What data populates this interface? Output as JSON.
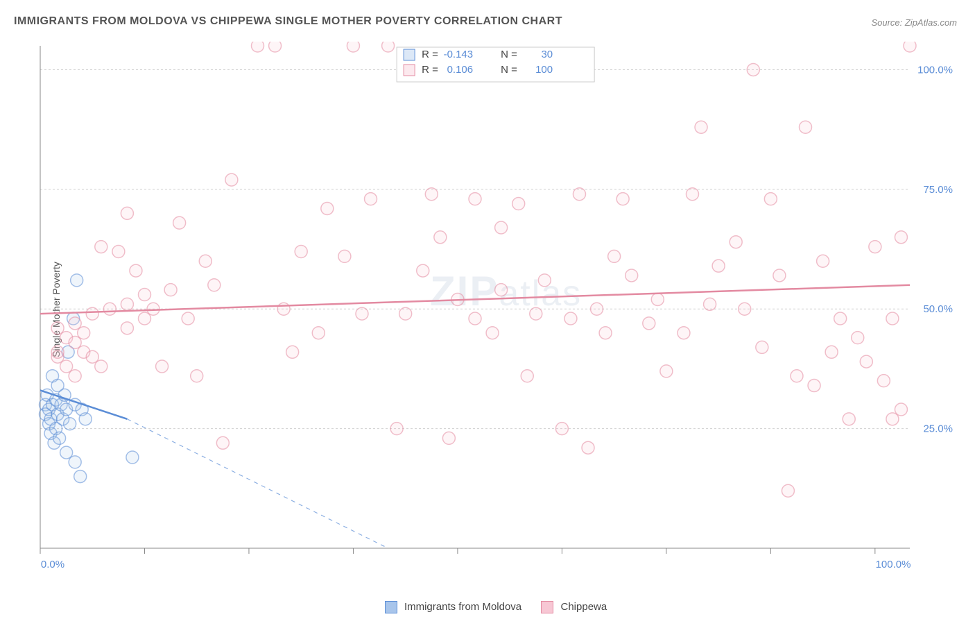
{
  "title": "IMMIGRANTS FROM MOLDOVA VS CHIPPEWA SINGLE MOTHER POVERTY CORRELATION CHART",
  "source": "Source: ZipAtlas.com",
  "y_axis_label": "Single Mother Poverty",
  "watermark": {
    "big": "ZIP",
    "small": "atlas"
  },
  "chart": {
    "type": "scatter",
    "xlim": [
      0,
      100
    ],
    "ylim": [
      0,
      105
    ],
    "xticks": [
      0,
      12,
      24,
      36,
      48,
      60,
      72,
      84,
      96
    ],
    "xtick_label_0": "0.0%",
    "xtick_label_end": "100.0%",
    "yticks": [
      25,
      50,
      75,
      100
    ],
    "ytick_labels": [
      "25.0%",
      "50.0%",
      "75.0%",
      "100.0%"
    ],
    "background": "#ffffff",
    "grid_color": "#d0d0d0",
    "point_radius": 9,
    "point_stroke_width": 1.5,
    "point_fill_opacity": 0.18,
    "trend_line_width": 2.5,
    "series": [
      {
        "name": "Immigrants from Moldova",
        "color_stroke": "#5b8dd6",
        "color_fill": "#a8c5eb",
        "R": "-0.143",
        "N": "30",
        "trend": {
          "x1": 0,
          "y1": 33,
          "x2": 10,
          "y2": 27,
          "dash_to_x": 40,
          "dash_to_y": 0
        },
        "points": [
          [
            0.6,
            30
          ],
          [
            0.6,
            28
          ],
          [
            0.8,
            32
          ],
          [
            1.0,
            26
          ],
          [
            1.0,
            29
          ],
          [
            1.2,
            24
          ],
          [
            1.2,
            27
          ],
          [
            1.4,
            36
          ],
          [
            1.4,
            30
          ],
          [
            1.6,
            22
          ],
          [
            1.8,
            31
          ],
          [
            1.8,
            25
          ],
          [
            2.0,
            28
          ],
          [
            2.0,
            34
          ],
          [
            2.2,
            23
          ],
          [
            2.4,
            30
          ],
          [
            2.6,
            27
          ],
          [
            2.8,
            32
          ],
          [
            3.0,
            20
          ],
          [
            3.0,
            29
          ],
          [
            3.2,
            41
          ],
          [
            3.4,
            26
          ],
          [
            3.8,
            48
          ],
          [
            4.0,
            30
          ],
          [
            4.0,
            18
          ],
          [
            4.6,
            15
          ],
          [
            4.2,
            56
          ],
          [
            4.8,
            29
          ],
          [
            5.2,
            27
          ],
          [
            10.6,
            19
          ]
        ]
      },
      {
        "name": "Chippewa",
        "color_stroke": "#e38aa1",
        "color_fill": "#f7c7d4",
        "R": "0.106",
        "N": "100",
        "trend": {
          "x1": 0,
          "y1": 49,
          "x2": 100,
          "y2": 55
        },
        "points": [
          [
            2,
            40
          ],
          [
            2,
            41
          ],
          [
            2,
            46
          ],
          [
            3,
            44
          ],
          [
            3,
            38
          ],
          [
            4,
            43
          ],
          [
            4,
            47
          ],
          [
            4,
            36
          ],
          [
            5,
            41
          ],
          [
            5,
            45
          ],
          [
            6,
            49
          ],
          [
            6,
            40
          ],
          [
            7,
            63
          ],
          [
            7,
            38
          ],
          [
            8,
            50
          ],
          [
            9,
            62
          ],
          [
            10,
            46
          ],
          [
            10,
            70
          ],
          [
            10,
            51
          ],
          [
            11,
            58
          ],
          [
            12,
            53
          ],
          [
            12,
            48
          ],
          [
            13,
            50
          ],
          [
            14,
            38
          ],
          [
            15,
            54
          ],
          [
            16,
            68
          ],
          [
            17,
            48
          ],
          [
            18,
            36
          ],
          [
            19,
            60
          ],
          [
            20,
            55
          ],
          [
            21,
            22
          ],
          [
            22,
            77
          ],
          [
            25,
            105
          ],
          [
            27,
            105
          ],
          [
            28,
            50
          ],
          [
            30,
            62
          ],
          [
            32,
            45
          ],
          [
            33,
            71
          ],
          [
            35,
            61
          ],
          [
            36,
            105
          ],
          [
            37,
            49
          ],
          [
            38,
            73
          ],
          [
            40,
            105
          ],
          [
            41,
            25
          ],
          [
            42,
            49
          ],
          [
            45,
            74
          ],
          [
            46,
            65
          ],
          [
            47,
            23
          ],
          [
            48,
            52
          ],
          [
            50,
            48
          ],
          [
            50,
            73
          ],
          [
            52,
            45
          ],
          [
            53,
            67
          ],
          [
            55,
            72
          ],
          [
            56,
            36
          ],
          [
            57,
            49
          ],
          [
            58,
            56
          ],
          [
            60,
            25
          ],
          [
            61,
            48
          ],
          [
            62,
            74
          ],
          [
            63,
            21
          ],
          [
            64,
            50
          ],
          [
            65,
            45
          ],
          [
            67,
            73
          ],
          [
            68,
            57
          ],
          [
            70,
            47
          ],
          [
            71,
            52
          ],
          [
            72,
            37
          ],
          [
            74,
            45
          ],
          [
            75,
            74
          ],
          [
            76,
            88
          ],
          [
            77,
            51
          ],
          [
            78,
            59
          ],
          [
            80,
            64
          ],
          [
            81,
            50
          ],
          [
            82,
            100
          ],
          [
            83,
            42
          ],
          [
            84,
            73
          ],
          [
            85,
            57
          ],
          [
            86,
            12
          ],
          [
            87,
            36
          ],
          [
            88,
            88
          ],
          [
            89,
            34
          ],
          [
            90,
            60
          ],
          [
            91,
            41
          ],
          [
            92,
            48
          ],
          [
            93,
            27
          ],
          [
            94,
            44
          ],
          [
            95,
            39
          ],
          [
            96,
            63
          ],
          [
            97,
            35
          ],
          [
            98,
            48
          ],
          [
            98,
            27
          ],
          [
            99,
            65
          ],
          [
            99,
            29
          ],
          [
            100,
            105
          ],
          [
            66,
            61
          ],
          [
            44,
            58
          ],
          [
            29,
            41
          ],
          [
            53,
            54
          ]
        ]
      }
    ]
  },
  "top_legend": {
    "r_label": "R =",
    "n_label": "N ="
  },
  "bottom_legend": {
    "items": [
      "Immigrants from Moldova",
      "Chippewa"
    ]
  }
}
